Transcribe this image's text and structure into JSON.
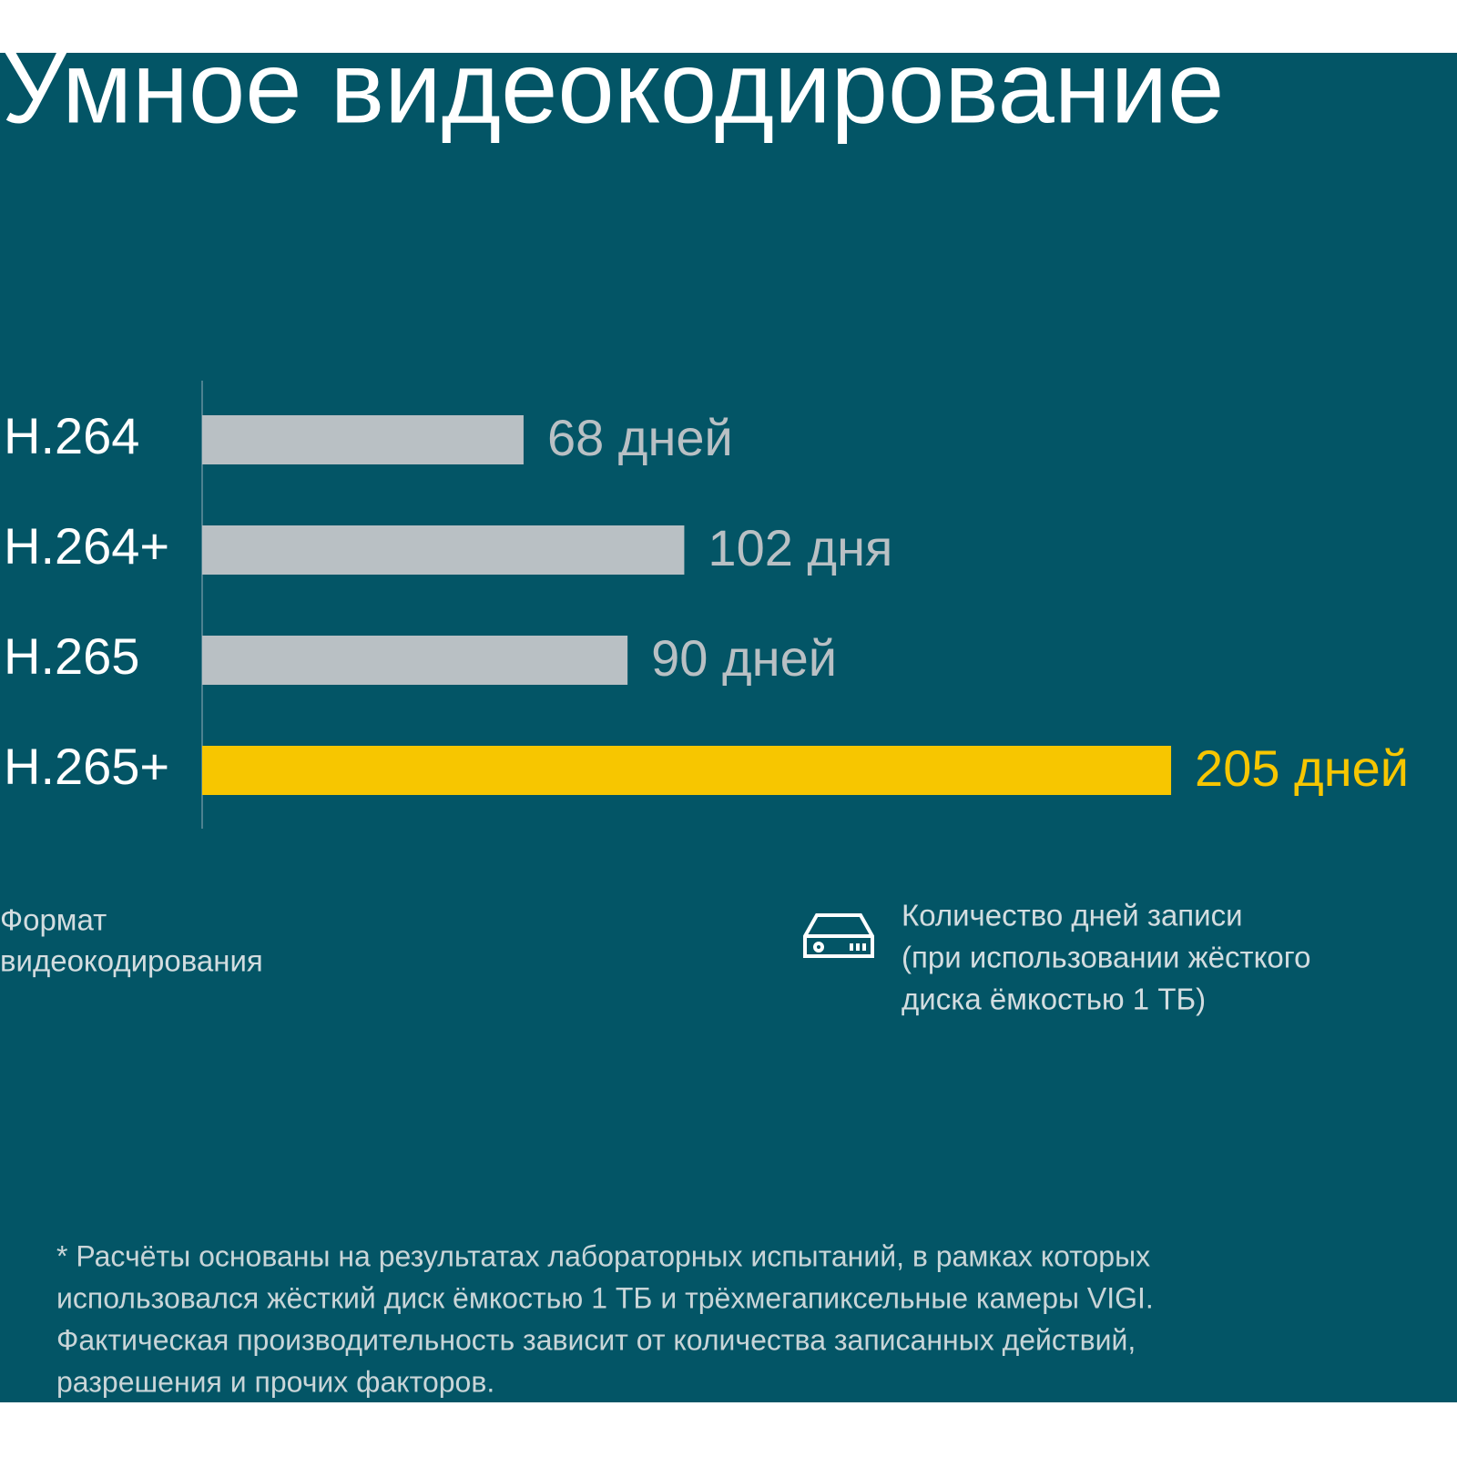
{
  "chart_data": {
    "type": "bar",
    "orientation": "horizontal",
    "title": "Умное видеокодирование",
    "categories": [
      "H.264",
      "H.264+",
      "H.265",
      "H.265+"
    ],
    "values": [
      68,
      102,
      90,
      205
    ],
    "value_labels": [
      "68 дней",
      "102 дня",
      "90 дней",
      "205 дней"
    ],
    "colors": [
      "#b9c0c4",
      "#b9c0c4",
      "#b9c0c4",
      "#f7c600"
    ],
    "xlim": [
      0,
      210
    ],
    "y_label": [
      "Формат",
      "видеокодирования"
    ],
    "x_label": [
      "Количество дней записи",
      "(при использовании жёсткого",
      "диска ёмкостью 1 ТБ)"
    ],
    "footnote": [
      "* Расчёты основаны на результатах лабораторных испытаний, в рамках которых",
      "использовался жёсткий диск ёмкостью 1 ТБ и трёхмегапиксельные камеры VIGI.",
      "Фактическая производительность зависит от количества записанных действий,",
      "разрешения и прочих факторов."
    ]
  }
}
